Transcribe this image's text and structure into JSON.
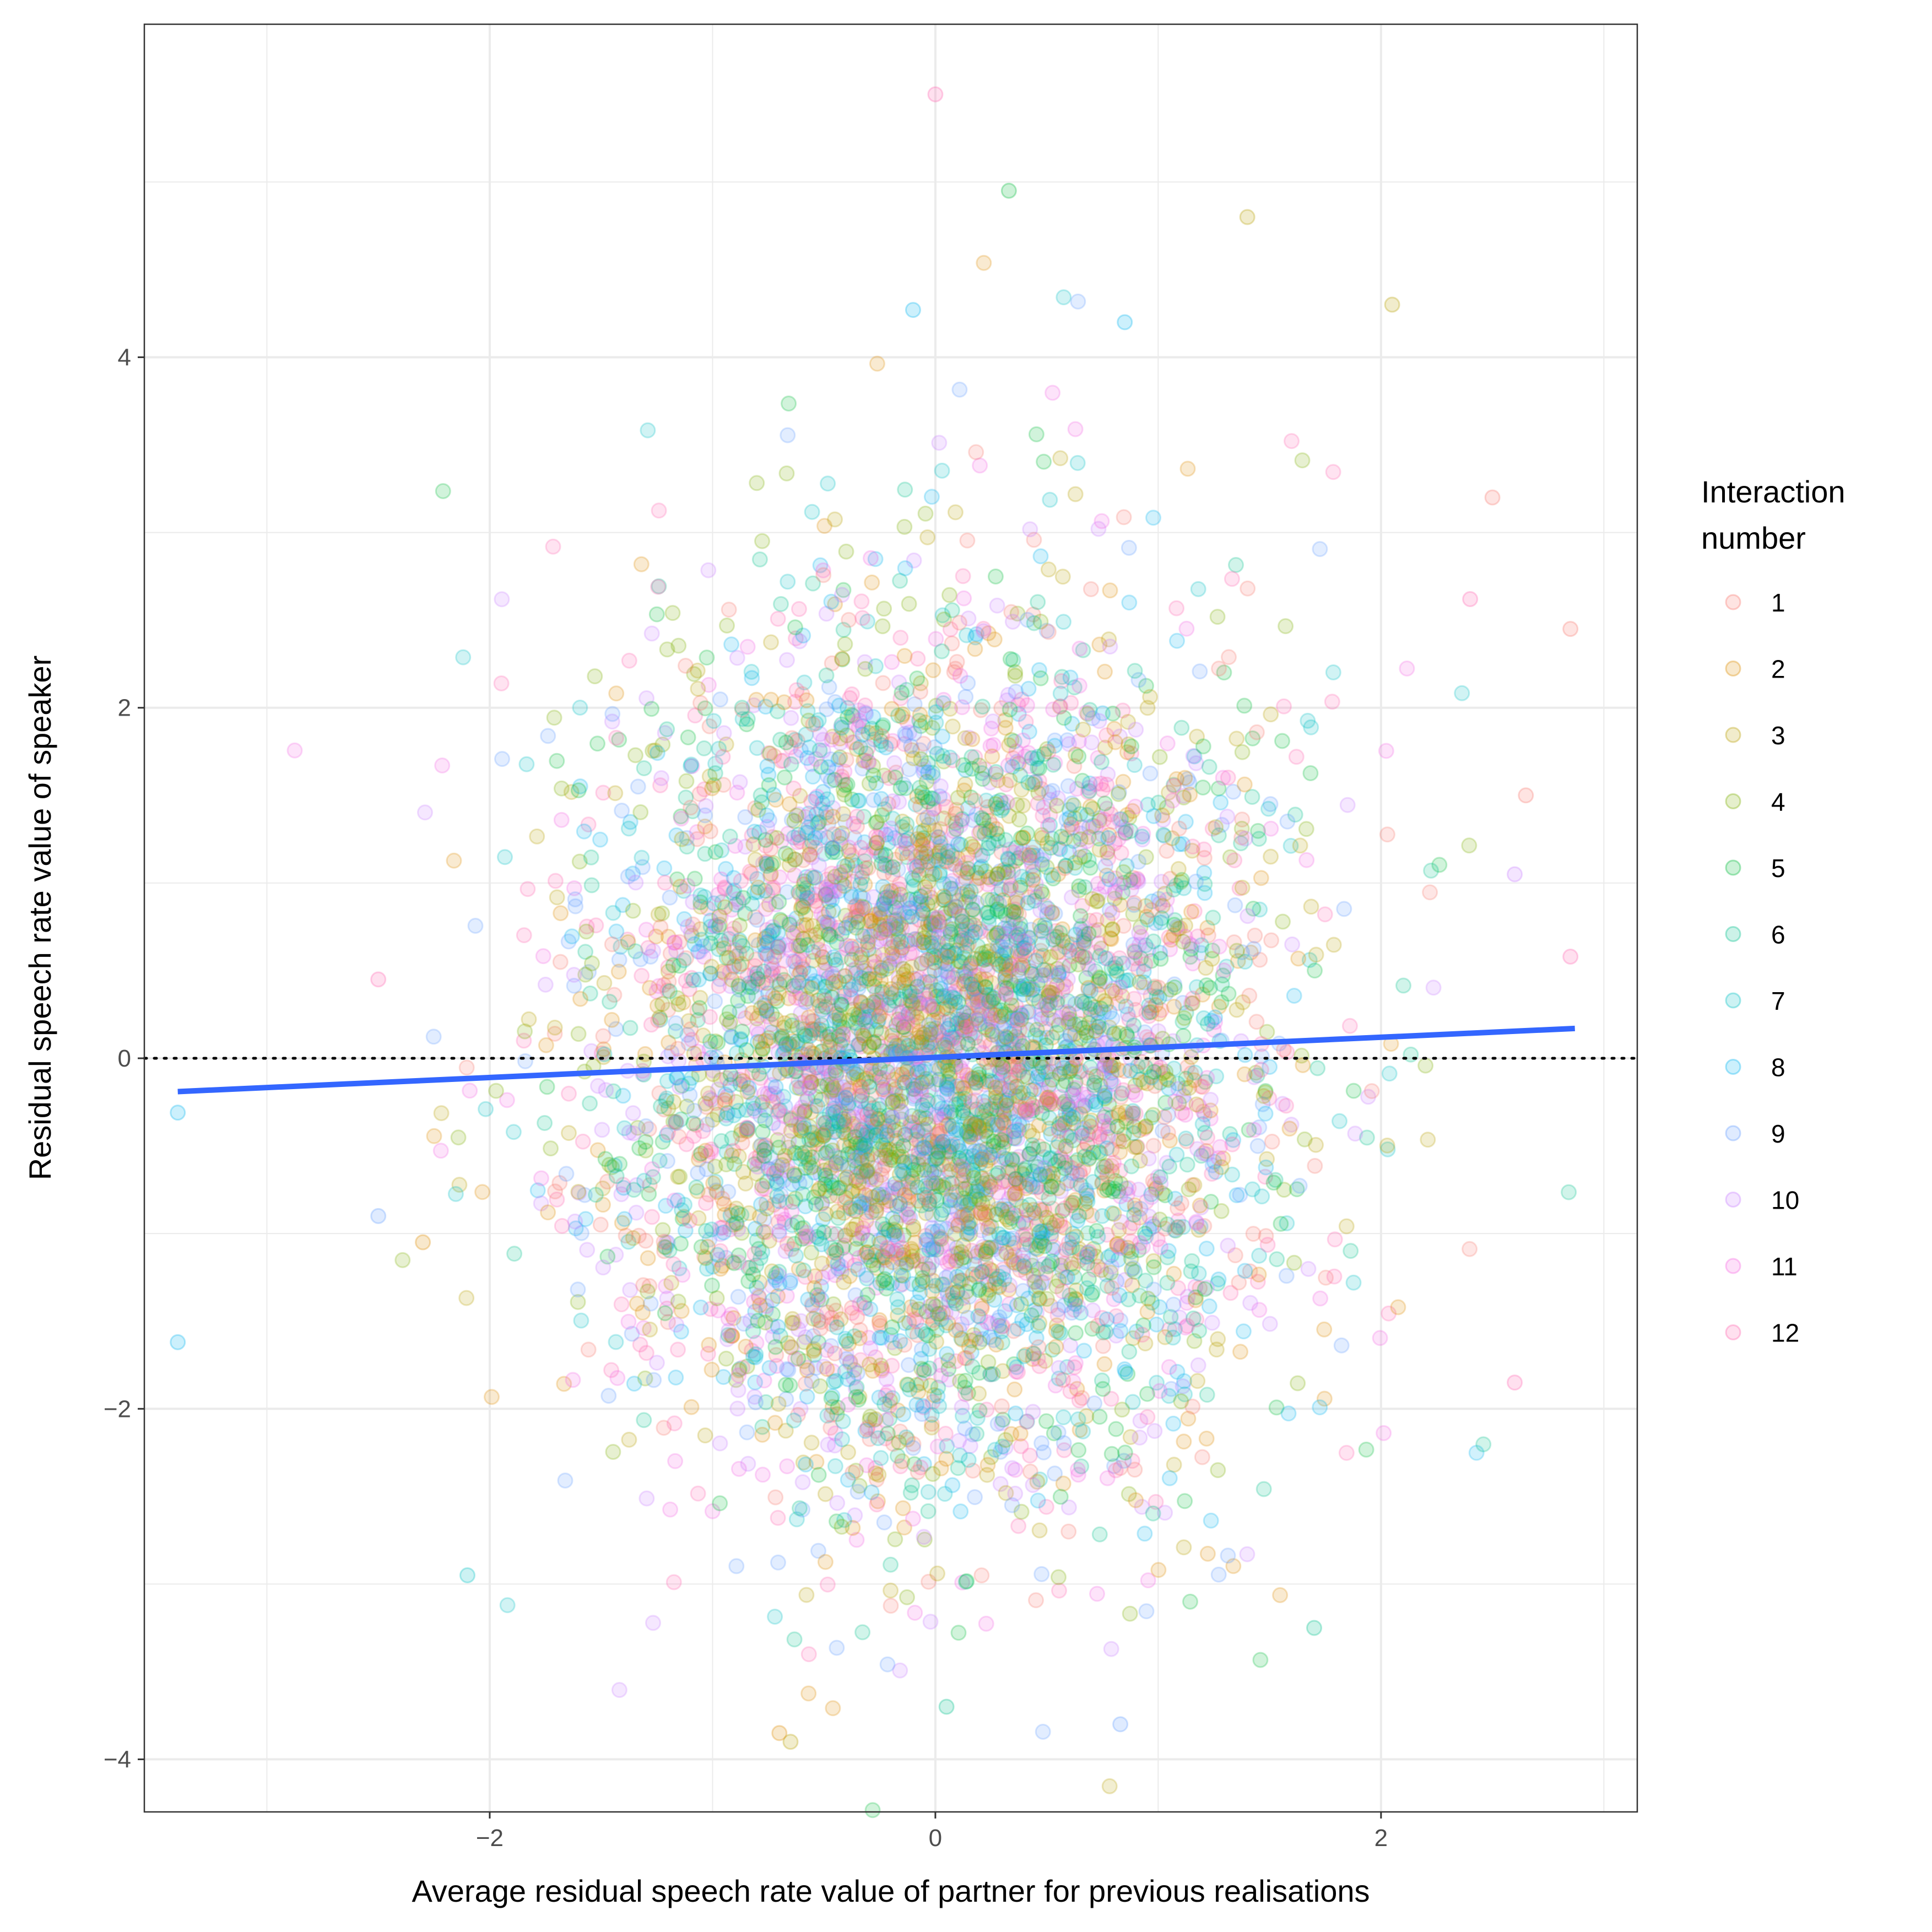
{
  "chart_data": {
    "type": "scatter",
    "title": "",
    "xlabel": "Average residual speech rate value of partner for previous realisations",
    "ylabel": "Residual speech rate value of speaker",
    "xlim": [
      -3.55,
      3.15
    ],
    "ylim": [
      -4.3,
      5.9
    ],
    "x_ticks": [
      -2,
      0,
      2
    ],
    "x_tick_labels": [
      "−2",
      "0",
      "2"
    ],
    "y_ticks": [
      -4,
      -2,
      0,
      2,
      4
    ],
    "y_tick_labels": [
      "−4",
      "−2",
      "0",
      "2",
      "4"
    ],
    "grid": true,
    "reference_line": {
      "y": 0,
      "style": "dotted",
      "color": "#000000"
    },
    "trend_line": {
      "color": "#3366FF",
      "x": [
        -3.4,
        2.87
      ],
      "y": [
        -0.19,
        0.17
      ]
    },
    "point_cloud": {
      "x_mean": 0.0,
      "x_sd": 0.72,
      "y_mean": 0.0,
      "y_sd": 1.2,
      "n_points": 6000,
      "opacity": 0.18
    },
    "outliers": [
      {
        "x": -3.4,
        "y": -0.31,
        "series": "8"
      },
      {
        "x": -3.4,
        "y": -1.62,
        "series": "8"
      },
      {
        "x": 0.0,
        "y": 5.5,
        "series": "12"
      },
      {
        "x": 0.33,
        "y": 4.95,
        "series": "5"
      },
      {
        "x": 1.4,
        "y": 4.8,
        "series": "3"
      },
      {
        "x": 2.05,
        "y": 4.3,
        "series": "3"
      },
      {
        "x": -0.1,
        "y": 4.27,
        "series": "8"
      },
      {
        "x": 0.85,
        "y": 4.2,
        "series": "8"
      },
      {
        "x": 2.85,
        "y": 2.45,
        "series": "1"
      },
      {
        "x": 2.5,
        "y": 3.2,
        "series": "1"
      },
      {
        "x": 2.85,
        "y": 0.58,
        "series": "12"
      },
      {
        "x": 2.6,
        "y": -1.85,
        "series": "12"
      },
      {
        "x": -2.1,
        "y": -2.95,
        "series": "7"
      },
      {
        "x": -0.65,
        "y": -3.9,
        "series": "3"
      },
      {
        "x": 0.83,
        "y": -3.8,
        "series": "9"
      },
      {
        "x": -0.7,
        "y": -3.85,
        "series": "2"
      },
      {
        "x": 0.05,
        "y": -3.7,
        "series": "6"
      },
      {
        "x": 1.7,
        "y": -3.25,
        "series": "6"
      },
      {
        "x": -2.5,
        "y": -0.9,
        "series": "9"
      },
      {
        "x": -2.5,
        "y": 0.45,
        "series": "12"
      },
      {
        "x": -2.3,
        "y": -1.05,
        "series": "2"
      },
      {
        "x": 2.6,
        "y": 1.05,
        "series": "10"
      },
      {
        "x": 2.4,
        "y": 2.62,
        "series": "12"
      },
      {
        "x": 2.65,
        "y": 1.5,
        "series": "1"
      }
    ],
    "legend": {
      "title": [
        "Interaction",
        "number"
      ],
      "position": "right",
      "items": [
        {
          "label": "1",
          "color": "#F8766D"
        },
        {
          "label": "2",
          "color": "#DE8C00"
        },
        {
          "label": "3",
          "color": "#B79F00"
        },
        {
          "label": "4",
          "color": "#7CAE00"
        },
        {
          "label": "5",
          "color": "#00BA38"
        },
        {
          "label": "6",
          "color": "#00C08B"
        },
        {
          "label": "7",
          "color": "#00BFC4"
        },
        {
          "label": "8",
          "color": "#00B4F0"
        },
        {
          "label": "9",
          "color": "#619CFF"
        },
        {
          "label": "10",
          "color": "#C77CFF"
        },
        {
          "label": "11",
          "color": "#F564E3"
        },
        {
          "label": "12",
          "color": "#FF64B0"
        }
      ]
    }
  }
}
